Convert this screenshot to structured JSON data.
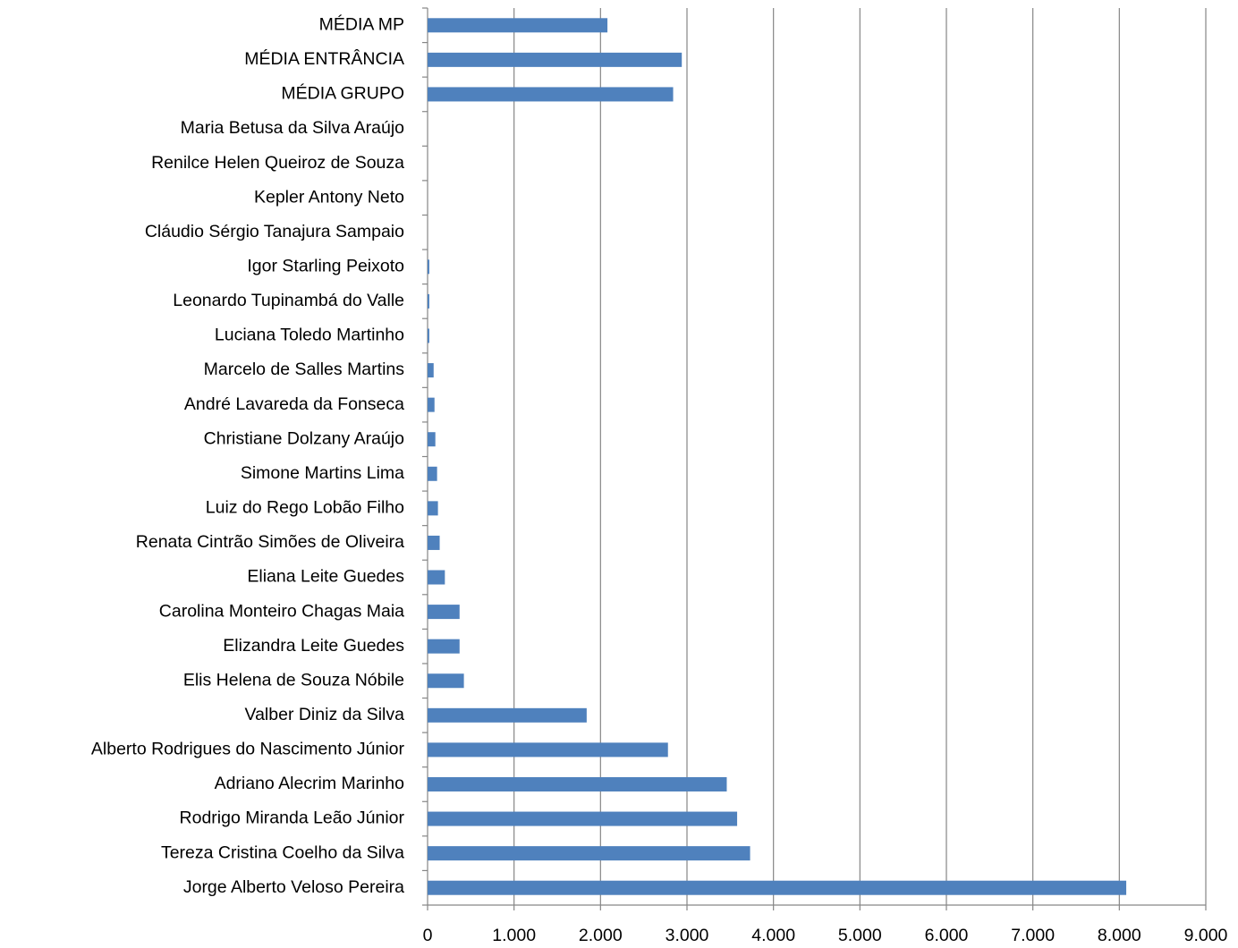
{
  "chart_data": {
    "type": "hbar",
    "categories": [
      "MÉDIA MP",
      "MÉDIA ENTRÂNCIA",
      "MÉDIA GRUPO",
      "Maria Betusa da Silva Araújo",
      "Renilce Helen Queiroz de Souza",
      "Kepler Antony Neto",
      "Cláudio Sérgio Tanajura Sampaio",
      "Igor Starling Peixoto",
      "Leonardo Tupinambá do Valle",
      "Luciana Toledo Martinho",
      "Marcelo de Salles Martins",
      "André Lavareda da Fonseca",
      "Christiane Dolzany Araújo",
      "Simone Martins Lima",
      "Luiz do Rego Lobão Filho",
      "Renata Cintrão Simões de Oliveira",
      "Eliana Leite Guedes",
      "Carolina Monteiro Chagas Maia",
      "Elizandra Leite Guedes",
      "Elis Helena de Souza Nóbile",
      "Valber Diniz da Silva",
      "Alberto Rodrigues do Nascimento Júnior",
      "Adriano Alecrim Marinho",
      "Rodrigo Miranda Leão Júnior",
      "Tereza Cristina Coelho da Silva",
      "Jorge Alberto Veloso Pereira"
    ],
    "values": [
      2080,
      2940,
      2840,
      0,
      0,
      0,
      0,
      20,
      20,
      20,
      70,
      80,
      90,
      110,
      120,
      140,
      200,
      370,
      370,
      420,
      1840,
      2780,
      3460,
      3580,
      3730,
      8080
    ],
    "color": "#4f81bd",
    "xlim": [
      0,
      9000
    ],
    "xticks": [
      0,
      {
        "value": 1000,
        "label": "1.000"
      },
      {
        "value": 2000,
        "label": "2.000"
      },
      {
        "value": 3000,
        "label": "3.000"
      },
      {
        "value": 4000,
        "label": "4.000"
      },
      {
        "value": 5000,
        "label": "5.000"
      },
      {
        "value": 6000,
        "label": "6.000"
      },
      {
        "value": 7000,
        "label": "7.000"
      },
      {
        "value": 8000,
        "label": "8.000"
      },
      {
        "value": 9000,
        "label": "9.000"
      }
    ],
    "grid": true
  }
}
